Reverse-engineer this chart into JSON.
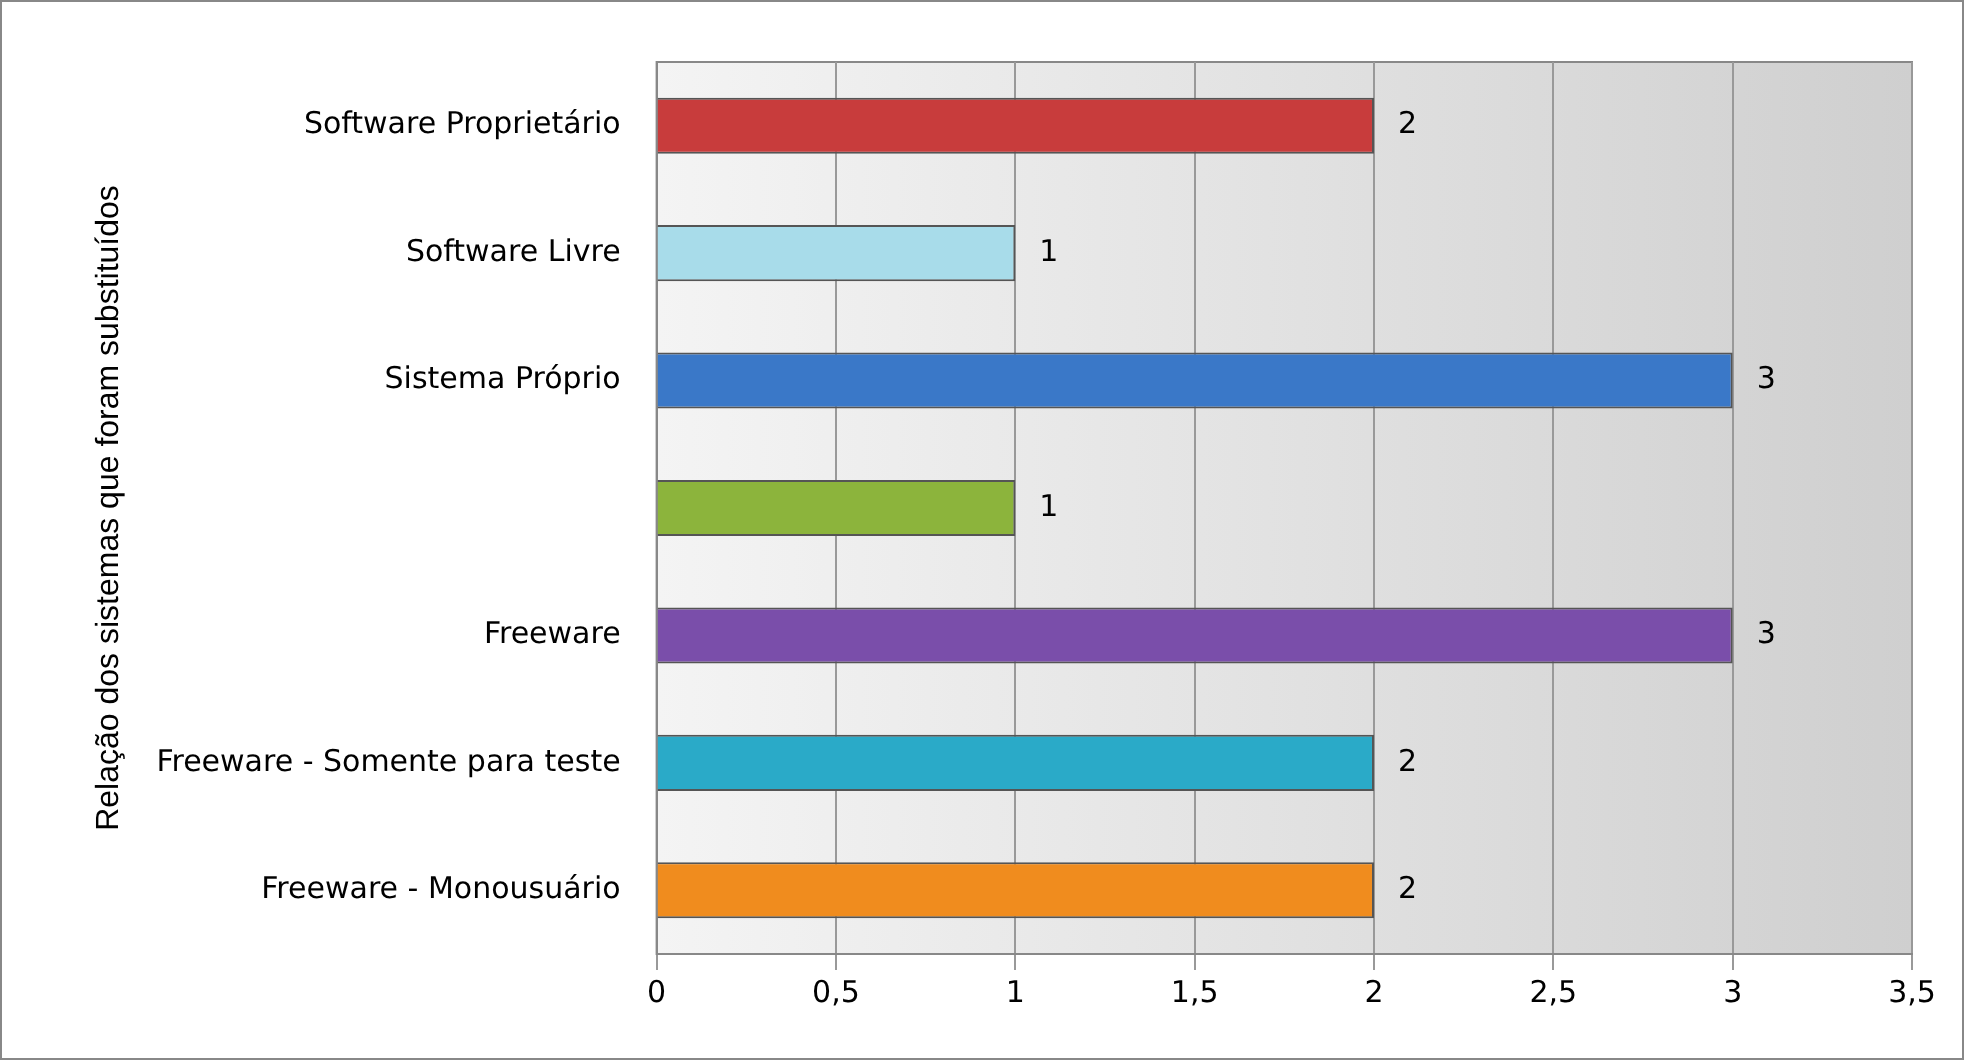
{
  "chart_data": {
    "type": "bar",
    "orientation": "horizontal",
    "ylabel": "Relação dos sistemas que foram substituídos",
    "categories": [
      "Software Proprietário",
      "Software Livre",
      "Sistema Próprio",
      null,
      "Freeware",
      "Freeware - Somente para teste",
      "Freeware - Monousuário"
    ],
    "values": [
      2,
      1,
      3,
      1,
      3,
      2,
      2
    ],
    "colors": [
      "#c83c3c",
      "#a8dcea",
      "#3a78c8",
      "#8cb43c",
      "#7a4eaa",
      "#2aaac8",
      "#f08c1e"
    ],
    "xlim": [
      0,
      3.5
    ],
    "xticks": [
      0,
      {
        "value": 0.5,
        "label": "0,5"
      },
      1,
      {
        "value": 1.5,
        "label": "1,5"
      },
      2,
      {
        "value": 2.5,
        "label": "2,5"
      },
      3,
      {
        "value": 3.5,
        "label": "3,5"
      }
    ],
    "grid": "x",
    "data_labels": true,
    "legend": false
  }
}
